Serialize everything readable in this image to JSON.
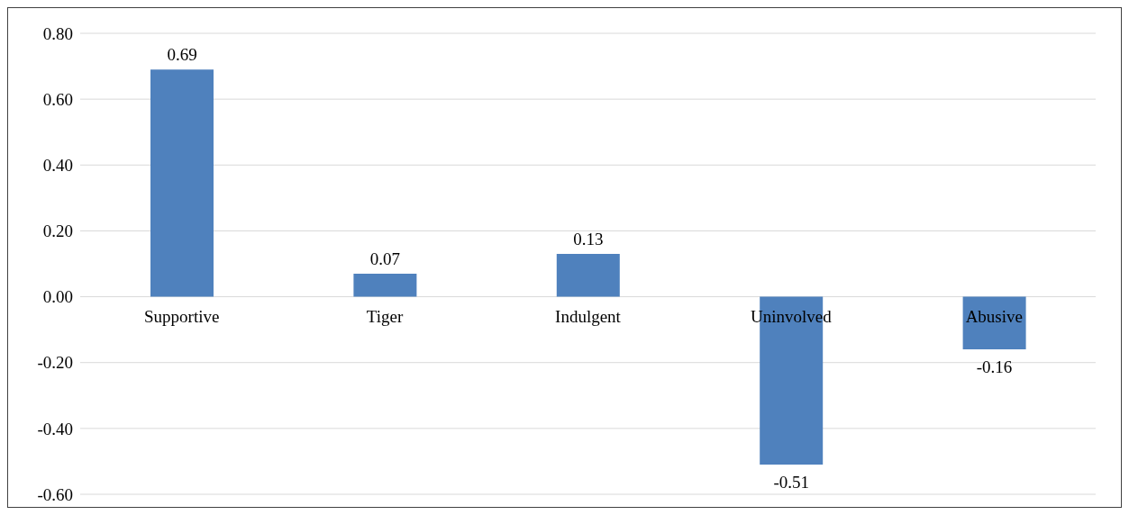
{
  "chart_data": {
    "type": "bar",
    "categories": [
      "Supportive",
      "Tiger",
      "Indulgent",
      "Uninvolved",
      "Abusive"
    ],
    "values": [
      0.69,
      0.07,
      0.13,
      -0.51,
      -0.16
    ],
    "color": "#4f81bd",
    "ylim": [
      -0.6,
      0.8
    ],
    "yticks": [
      {
        "value": -0.6,
        "label": "-0.60"
      },
      {
        "value": -0.4,
        "label": "-0.40"
      },
      {
        "value": -0.2,
        "label": "-0.20"
      },
      {
        "value": 0,
        "label": "0.00"
      },
      {
        "value": 0.2,
        "label": "0.20"
      },
      {
        "value": 0.4,
        "label": "0.40"
      },
      {
        "value": 0.6,
        "label": "0.60"
      },
      {
        "value": 0.8,
        "label": "0.80"
      }
    ],
    "grid": "y",
    "data_labels": true,
    "legend": false
  }
}
